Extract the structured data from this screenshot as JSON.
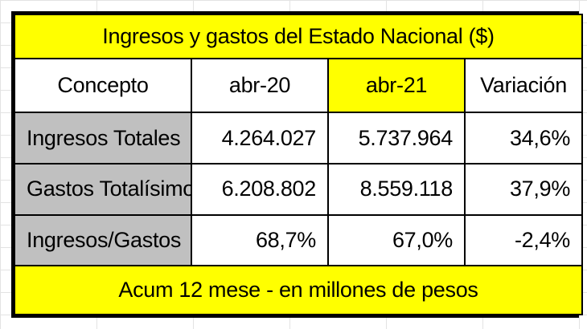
{
  "title": "Ingresos y gastos del Estado Nacional ($)",
  "headers": [
    "Concepto",
    "abr-20",
    "abr-21",
    "Variación"
  ],
  "rows": [
    {
      "label": "Ingresos Totales",
      "abr20": "4.264.027",
      "abr21": "5.737.964",
      "variacion": "34,6%"
    },
    {
      "label": "Gastos Totalísimo",
      "abr20": "6.208.802",
      "abr21": "8.559.118",
      "variacion": "37,9%"
    },
    {
      "label": "Ingresos/Gastos",
      "abr20": "68,7%",
      "abr21": "67,0%",
      "variacion": "-2,4%"
    }
  ],
  "footer": "Acum 12 mese - en millones de pesos",
  "colors": {
    "highlight": "#ffff00",
    "label_fill": "#c0c0c0",
    "border": "#000000"
  }
}
